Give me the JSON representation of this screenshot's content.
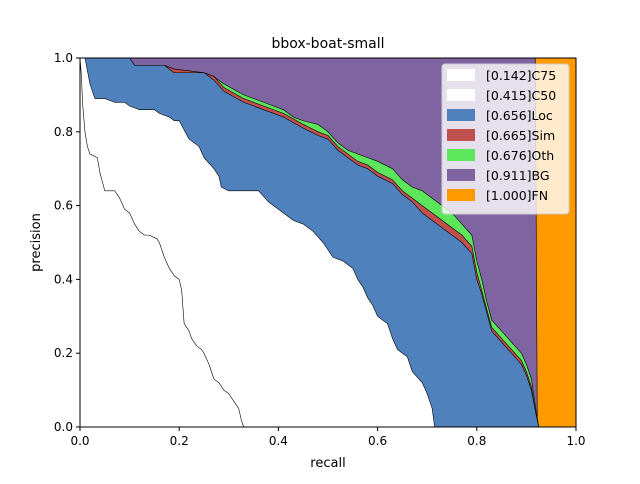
{
  "chart_data": {
    "type": "area",
    "title": "bbox-boat-small",
    "xlabel": "recall",
    "ylabel": "precision",
    "xlim": [
      0,
      1
    ],
    "ylim": [
      0,
      1
    ],
    "xticks": [
      "0.0",
      "0.2",
      "0.4",
      "0.6",
      "0.8",
      "1.0"
    ],
    "yticks": [
      "0.0",
      "0.2",
      "0.4",
      "0.6",
      "0.8",
      "1.0"
    ],
    "grid": false,
    "legend_position": "top-right",
    "series": [
      {
        "name": "[0.142]C75",
        "color": "#ffffff",
        "points": [
          [
            0,
            1
          ],
          [
            0.003,
            0.95
          ],
          [
            0.005,
            0.88
          ],
          [
            0.01,
            0.8
          ],
          [
            0.015,
            0.76
          ],
          [
            0.02,
            0.74
          ],
          [
            0.035,
            0.73
          ],
          [
            0.04,
            0.69
          ],
          [
            0.05,
            0.64
          ],
          [
            0.07,
            0.64
          ],
          [
            0.08,
            0.62
          ],
          [
            0.09,
            0.59
          ],
          [
            0.1,
            0.58
          ],
          [
            0.11,
            0.55
          ],
          [
            0.12,
            0.53
          ],
          [
            0.13,
            0.52
          ],
          [
            0.14,
            0.52
          ],
          [
            0.155,
            0.51
          ],
          [
            0.16,
            0.5
          ],
          [
            0.17,
            0.46
          ],
          [
            0.18,
            0.43
          ],
          [
            0.19,
            0.41
          ],
          [
            0.2,
            0.4
          ],
          [
            0.205,
            0.37
          ],
          [
            0.21,
            0.28
          ],
          [
            0.22,
            0.26
          ],
          [
            0.225,
            0.24
          ],
          [
            0.235,
            0.22
          ],
          [
            0.245,
            0.21
          ],
          [
            0.25,
            0.2
          ],
          [
            0.26,
            0.17
          ],
          [
            0.265,
            0.15
          ],
          [
            0.27,
            0.13
          ],
          [
            0.28,
            0.12
          ],
          [
            0.29,
            0.1
          ],
          [
            0.3,
            0.09
          ],
          [
            0.31,
            0.07
          ],
          [
            0.32,
            0.05
          ],
          [
            0.325,
            0.02
          ],
          [
            0.33,
            0.0
          ]
        ]
      },
      {
        "name": "[0.415]C50",
        "color": "#ffffff",
        "points": [
          [
            0,
            1
          ],
          [
            0.01,
            1
          ],
          [
            0.02,
            0.93
          ],
          [
            0.03,
            0.89
          ],
          [
            0.05,
            0.89
          ],
          [
            0.07,
            0.88
          ],
          [
            0.09,
            0.88
          ],
          [
            0.1,
            0.87
          ],
          [
            0.12,
            0.86
          ],
          [
            0.15,
            0.86
          ],
          [
            0.16,
            0.85
          ],
          [
            0.18,
            0.84
          ],
          [
            0.19,
            0.83
          ],
          [
            0.2,
            0.83
          ],
          [
            0.22,
            0.78
          ],
          [
            0.24,
            0.76
          ],
          [
            0.25,
            0.73
          ],
          [
            0.27,
            0.7
          ],
          [
            0.28,
            0.68
          ],
          [
            0.285,
            0.65
          ],
          [
            0.3,
            0.64
          ],
          [
            0.36,
            0.64
          ],
          [
            0.38,
            0.61
          ],
          [
            0.4,
            0.59
          ],
          [
            0.43,
            0.56
          ],
          [
            0.45,
            0.55
          ],
          [
            0.47,
            0.53
          ],
          [
            0.49,
            0.5
          ],
          [
            0.5,
            0.48
          ],
          [
            0.51,
            0.46
          ],
          [
            0.53,
            0.45
          ],
          [
            0.55,
            0.43
          ],
          [
            0.56,
            0.4
          ],
          [
            0.57,
            0.38
          ],
          [
            0.58,
            0.35
          ],
          [
            0.59,
            0.33
          ],
          [
            0.6,
            0.3
          ],
          [
            0.62,
            0.28
          ],
          [
            0.63,
            0.24
          ],
          [
            0.64,
            0.21
          ],
          [
            0.66,
            0.19
          ],
          [
            0.67,
            0.15
          ],
          [
            0.69,
            0.12
          ],
          [
            0.7,
            0.09
          ],
          [
            0.71,
            0.05
          ],
          [
            0.715,
            0.0
          ]
        ]
      },
      {
        "name": "[0.656]Loc",
        "color": "#4f81bd",
        "points": [
          [
            0,
            1
          ],
          [
            0.1,
            1
          ],
          [
            0.11,
            0.98
          ],
          [
            0.17,
            0.98
          ],
          [
            0.19,
            0.96
          ],
          [
            0.25,
            0.96
          ],
          [
            0.27,
            0.94
          ],
          [
            0.29,
            0.91
          ],
          [
            0.33,
            0.88
          ],
          [
            0.37,
            0.86
          ],
          [
            0.41,
            0.84
          ],
          [
            0.45,
            0.81
          ],
          [
            0.48,
            0.79
          ],
          [
            0.5,
            0.78
          ],
          [
            0.52,
            0.75
          ],
          [
            0.54,
            0.73
          ],
          [
            0.56,
            0.71
          ],
          [
            0.58,
            0.7
          ],
          [
            0.6,
            0.68
          ],
          [
            0.63,
            0.66
          ],
          [
            0.65,
            0.63
          ],
          [
            0.67,
            0.61
          ],
          [
            0.69,
            0.58
          ],
          [
            0.71,
            0.56
          ],
          [
            0.73,
            0.54
          ],
          [
            0.75,
            0.52
          ],
          [
            0.77,
            0.5
          ],
          [
            0.79,
            0.47
          ],
          [
            0.8,
            0.4
          ],
          [
            0.81,
            0.36
          ],
          [
            0.82,
            0.31
          ],
          [
            0.83,
            0.26
          ],
          [
            0.85,
            0.23
          ],
          [
            0.87,
            0.2
          ],
          [
            0.89,
            0.17
          ],
          [
            0.9,
            0.14
          ],
          [
            0.91,
            0.1
          ],
          [
            0.92,
            0.03
          ],
          [
            0.925,
            0.0
          ]
        ]
      },
      {
        "name": "[0.665]Sim",
        "color": "#c0504d",
        "points": [
          [
            0,
            1
          ],
          [
            0.1,
            1
          ],
          [
            0.11,
            0.98
          ],
          [
            0.17,
            0.98
          ],
          [
            0.19,
            0.97
          ],
          [
            0.25,
            0.96
          ],
          [
            0.27,
            0.95
          ],
          [
            0.29,
            0.92
          ],
          [
            0.33,
            0.89
          ],
          [
            0.37,
            0.87
          ],
          [
            0.41,
            0.85
          ],
          [
            0.45,
            0.82
          ],
          [
            0.48,
            0.8
          ],
          [
            0.5,
            0.79
          ],
          [
            0.52,
            0.76
          ],
          [
            0.54,
            0.74
          ],
          [
            0.56,
            0.72
          ],
          [
            0.58,
            0.71
          ],
          [
            0.6,
            0.69
          ],
          [
            0.63,
            0.67
          ],
          [
            0.65,
            0.64
          ],
          [
            0.67,
            0.62
          ],
          [
            0.69,
            0.6
          ],
          [
            0.71,
            0.58
          ],
          [
            0.73,
            0.56
          ],
          [
            0.75,
            0.54
          ],
          [
            0.77,
            0.52
          ],
          [
            0.79,
            0.49
          ],
          [
            0.8,
            0.42
          ],
          [
            0.81,
            0.37
          ],
          [
            0.82,
            0.32
          ],
          [
            0.83,
            0.27
          ],
          [
            0.85,
            0.24
          ],
          [
            0.87,
            0.21
          ],
          [
            0.89,
            0.18
          ],
          [
            0.9,
            0.15
          ],
          [
            0.91,
            0.11
          ],
          [
            0.92,
            0.03
          ],
          [
            0.925,
            0.0
          ]
        ]
      },
      {
        "name": "[0.676]Oth",
        "color": "#5ce65c",
        "points": [
          [
            0,
            1
          ],
          [
            0.1,
            1
          ],
          [
            0.11,
            0.98
          ],
          [
            0.17,
            0.98
          ],
          [
            0.19,
            0.97
          ],
          [
            0.25,
            0.96
          ],
          [
            0.27,
            0.95
          ],
          [
            0.29,
            0.93
          ],
          [
            0.33,
            0.9
          ],
          [
            0.37,
            0.88
          ],
          [
            0.41,
            0.86
          ],
          [
            0.43,
            0.84
          ],
          [
            0.45,
            0.83
          ],
          [
            0.48,
            0.82
          ],
          [
            0.5,
            0.8
          ],
          [
            0.52,
            0.77
          ],
          [
            0.54,
            0.75
          ],
          [
            0.56,
            0.74
          ],
          [
            0.58,
            0.73
          ],
          [
            0.6,
            0.72
          ],
          [
            0.63,
            0.7
          ],
          [
            0.65,
            0.67
          ],
          [
            0.67,
            0.65
          ],
          [
            0.69,
            0.64
          ],
          [
            0.71,
            0.62
          ],
          [
            0.73,
            0.6
          ],
          [
            0.75,
            0.58
          ],
          [
            0.77,
            0.55
          ],
          [
            0.79,
            0.52
          ],
          [
            0.8,
            0.45
          ],
          [
            0.81,
            0.4
          ],
          [
            0.82,
            0.34
          ],
          [
            0.83,
            0.29
          ],
          [
            0.85,
            0.26
          ],
          [
            0.87,
            0.23
          ],
          [
            0.89,
            0.2
          ],
          [
            0.9,
            0.17
          ],
          [
            0.91,
            0.13
          ],
          [
            0.92,
            0.04
          ],
          [
            0.925,
            0.0
          ]
        ]
      },
      {
        "name": "[0.911]BG",
        "color": "#8064a2",
        "points": [
          [
            0,
            1
          ],
          [
            0.918,
            1
          ],
          [
            0.922,
            0.0
          ]
        ]
      },
      {
        "name": "[1.000]FN",
        "color": "#ff9900",
        "points": [
          [
            0,
            1
          ],
          [
            1,
            1
          ],
          [
            1,
            0
          ]
        ]
      }
    ]
  }
}
